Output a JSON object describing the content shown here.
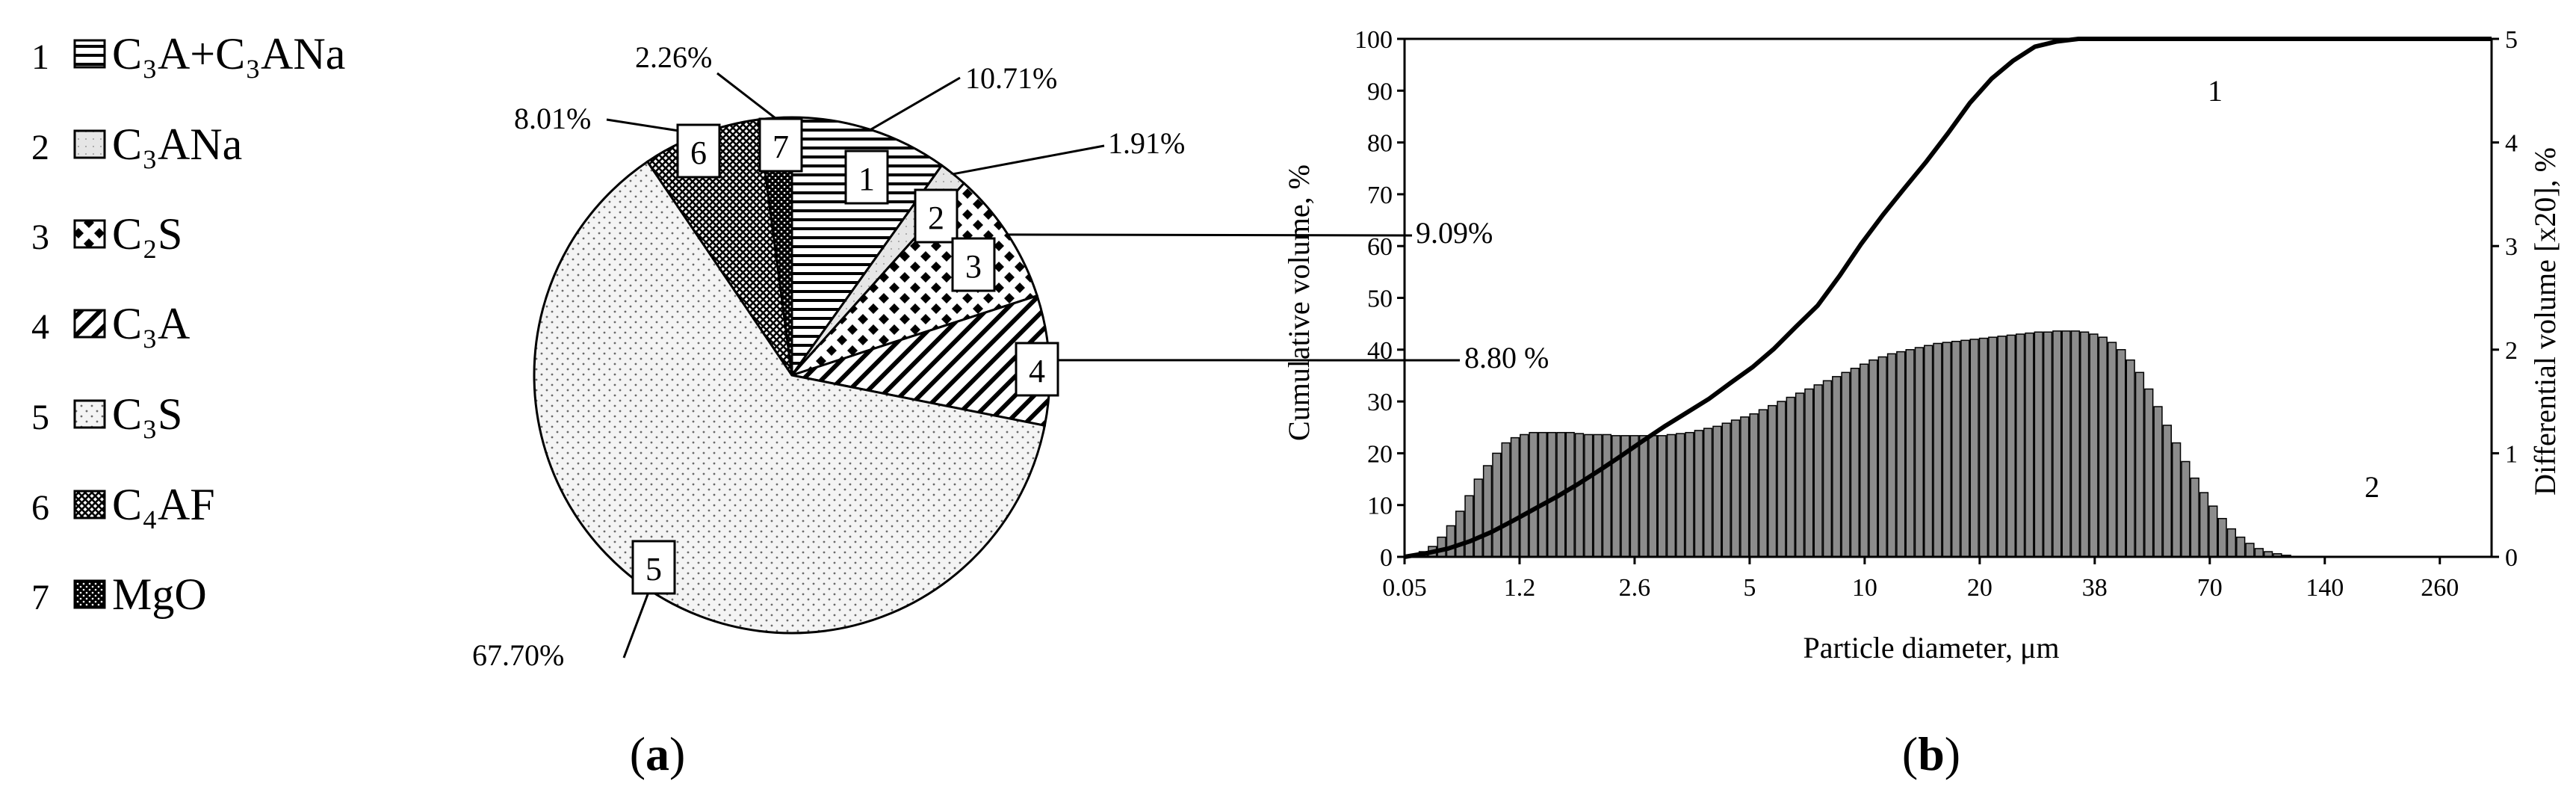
{
  "chart_data": [
    {
      "type": "pie",
      "panel_label": {
        "open": "(",
        "letter": "a",
        "close": ")"
      },
      "title": "",
      "legend_placement": "left",
      "slices": [
        {
          "id": "1",
          "name": "C₃A+C₃ANa",
          "value": 10.71,
          "label": "10.71%",
          "pattern": "horizontal-lines"
        },
        {
          "id": "2",
          "name": "C₃ANa",
          "value": 1.91,
          "label": "1.91%",
          "pattern": "light-dots"
        },
        {
          "id": "3",
          "name": "C₂S",
          "value": 9.09,
          "label": "9.09%",
          "pattern": "diamond-checker"
        },
        {
          "id": "4",
          "name": "C₃A",
          "value": 8.8,
          "label": "8.80 %",
          "pattern": "diagonal-lines"
        },
        {
          "id": "5",
          "name": "C₃S",
          "value": 67.7,
          "label": "67.70%",
          "pattern": "fine-dots"
        },
        {
          "id": "6",
          "name": "C₄AF",
          "value": 8.01,
          "label": "8.01%",
          "pattern": "cross-hatch"
        },
        {
          "id": "7",
          "name": "MgO",
          "value": 2.26,
          "label": "2.26%",
          "pattern": "dark-dots"
        }
      ]
    },
    {
      "type": "bar+line",
      "panel_label": {
        "open": "(",
        "letter": "b",
        "close": ")"
      },
      "title": "",
      "xlabel": "Particle diameter, μm",
      "ylabel": "Cumulative volume, %",
      "y2label": "Differential volume [x20], %",
      "xticks": [
        "0.05",
        "1.2",
        "2.6",
        "5",
        "10",
        "20",
        "38",
        "70",
        "140",
        "260"
      ],
      "yticks": [
        0,
        10,
        20,
        30,
        40,
        50,
        60,
        70,
        80,
        90,
        100
      ],
      "y2ticks": [
        0,
        1,
        2,
        3,
        4,
        5
      ],
      "ylim": [
        0,
        100
      ],
      "y2lim": [
        0,
        5
      ],
      "grid": false,
      "series": [
        {
          "name": "1",
          "kind": "line",
          "axis": "left",
          "x_frac": [
            0,
            0.02,
            0.04,
            0.06,
            0.08,
            0.1,
            0.12,
            0.14,
            0.16,
            0.18,
            0.2,
            0.22,
            0.24,
            0.26,
            0.28,
            0.3,
            0.32,
            0.34,
            0.36,
            0.38,
            0.4,
            0.42,
            0.44,
            0.46,
            0.48,
            0.5,
            0.52,
            0.54,
            0.56,
            0.58,
            0.6,
            0.62,
            0.64,
            0.66,
            0.68,
            0.7,
            0.72,
            1
          ],
          "values": [
            0,
            0.7,
            1.6,
            3,
            4.8,
            7,
            9.3,
            11.6,
            14.1,
            16.8,
            19.6,
            22.5,
            25.3,
            27.9,
            30.5,
            33.6,
            36.6,
            40.2,
            44.4,
            48.5,
            54.2,
            60.4,
            66,
            71.2,
            76.3,
            81.8,
            87.6,
            92.3,
            95.8,
            98.5,
            99.5,
            100,
            100,
            100,
            100,
            100,
            100,
            100
          ]
        },
        {
          "name": "2",
          "kind": "bar",
          "axis": "right",
          "x_frac_start": 0.005,
          "x_frac_step": 0.00845,
          "values": [
            0.02,
            0.05,
            0.1,
            0.19,
            0.3,
            0.44,
            0.59,
            0.75,
            0.88,
            1.0,
            1.1,
            1.15,
            1.18,
            1.2,
            1.2,
            1.2,
            1.2,
            1.2,
            1.19,
            1.18,
            1.18,
            1.18,
            1.17,
            1.17,
            1.17,
            1.17,
            1.17,
            1.17,
            1.18,
            1.19,
            1.2,
            1.22,
            1.24,
            1.26,
            1.29,
            1.32,
            1.35,
            1.38,
            1.42,
            1.46,
            1.5,
            1.54,
            1.58,
            1.62,
            1.66,
            1.7,
            1.74,
            1.78,
            1.82,
            1.86,
            1.9,
            1.93,
            1.96,
            1.98,
            2.0,
            2.02,
            2.04,
            2.06,
            2.07,
            2.08,
            2.09,
            2.1,
            2.11,
            2.12,
            2.13,
            2.14,
            2.15,
            2.16,
            2.17,
            2.17,
            2.18,
            2.18,
            2.18,
            2.17,
            2.15,
            2.12,
            2.07,
            2.0,
            1.9,
            1.78,
            1.62,
            1.45,
            1.27,
            1.1,
            0.92,
            0.76,
            0.62,
            0.49,
            0.37,
            0.27,
            0.19,
            0.13,
            0.08,
            0.05,
            0.03,
            0.015
          ]
        }
      ]
    }
  ]
}
